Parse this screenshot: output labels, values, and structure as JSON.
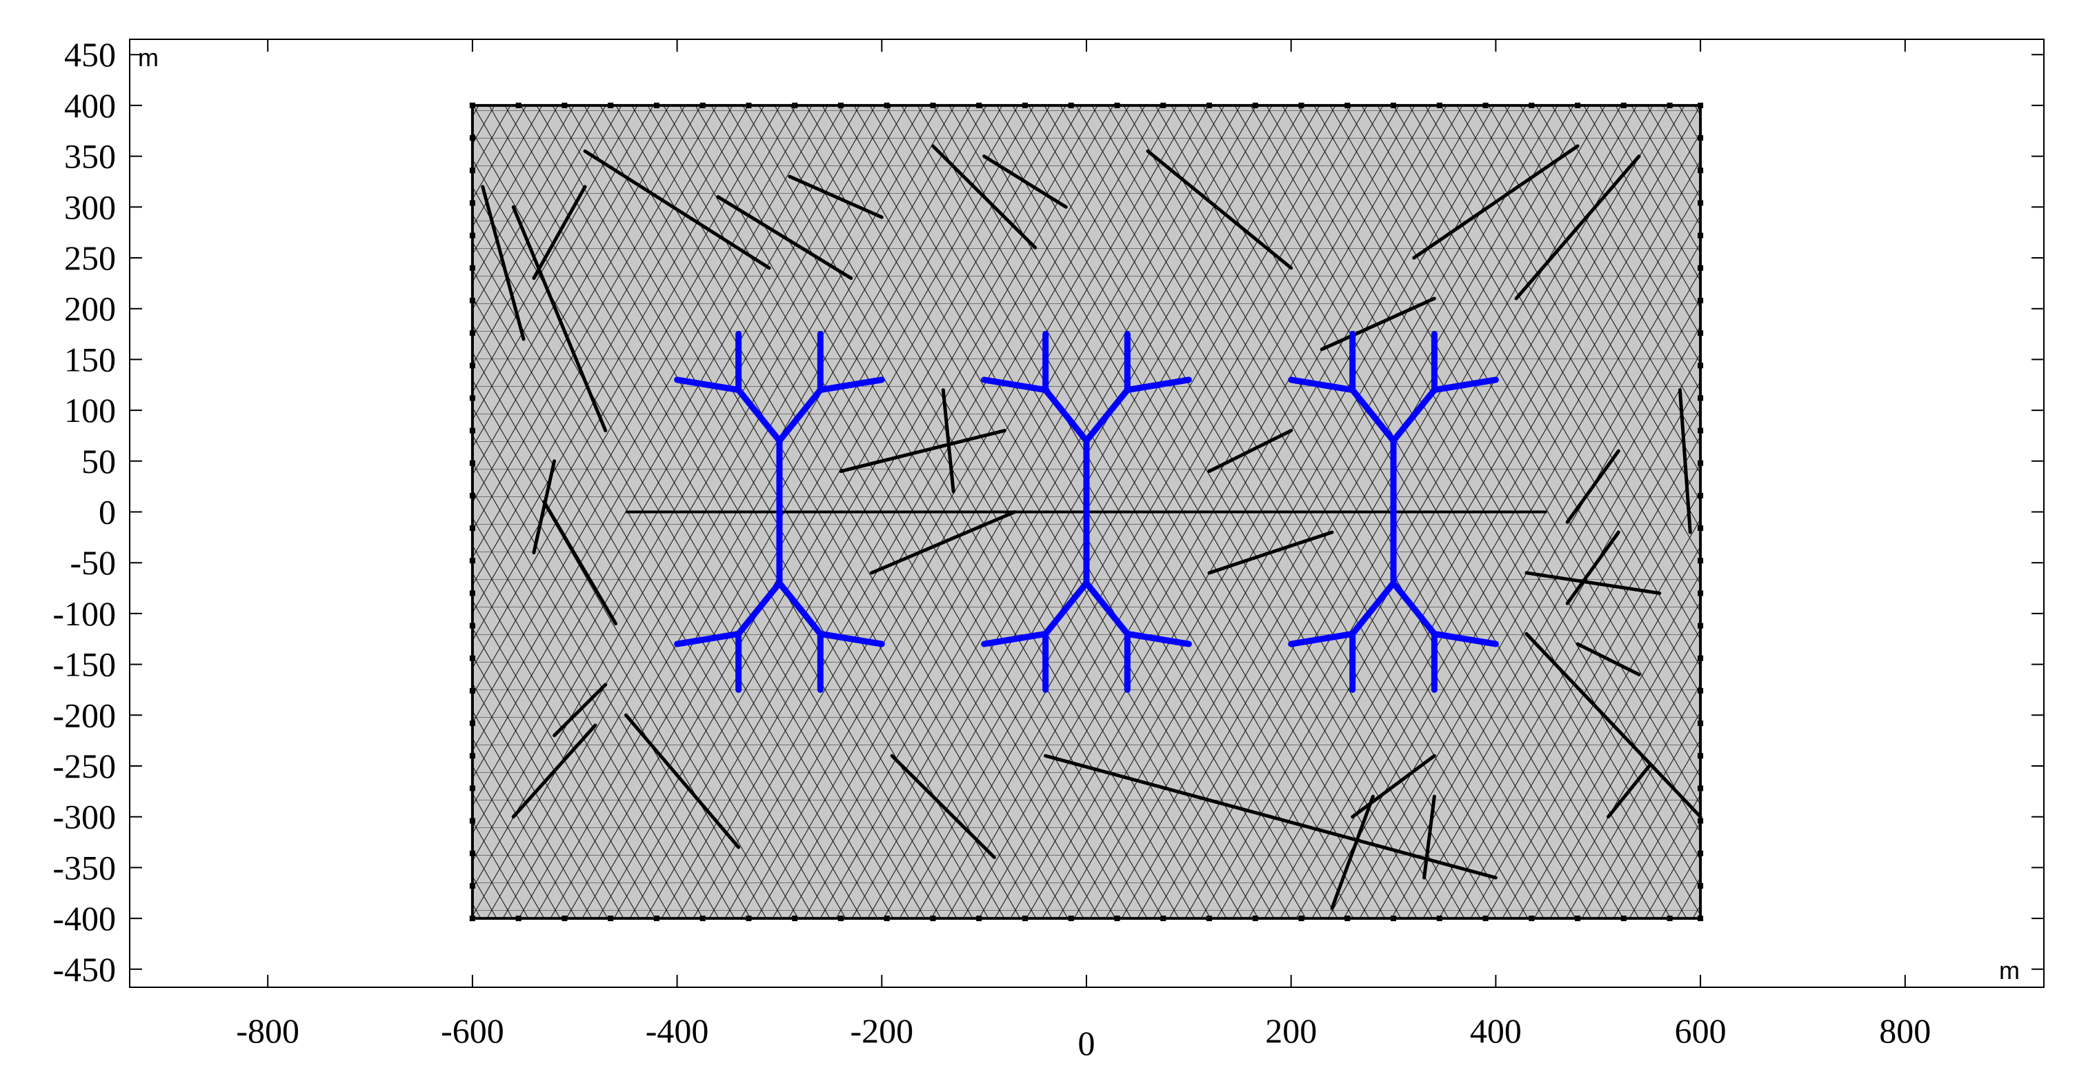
{
  "figure": {
    "x_unit": "m",
    "y_unit": "m"
  },
  "axes": {
    "x_ticks": [
      -800,
      -600,
      -400,
      -200,
      0,
      200,
      400,
      600,
      800
    ],
    "y_ticks": [
      450,
      400,
      350,
      300,
      250,
      200,
      150,
      100,
      50,
      0,
      -50,
      -100,
      -150,
      -200,
      -250,
      -300,
      -350,
      -400,
      -450
    ],
    "xlim": [
      -945,
      930
    ],
    "ylim": [
      -465,
      465
    ]
  },
  "domain_box": {
    "x": [
      -600,
      600
    ],
    "y": [
      -400,
      400
    ],
    "fill": "#c8c8c8",
    "edge": "#000000"
  },
  "horizontal_line": {
    "x": [
      -450,
      450
    ],
    "y": 0
  },
  "fracture_colors": {
    "natural": "#000000",
    "hydraulic": "#0000ff"
  },
  "natural_fractures": [
    [
      [
        -490,
        355
      ],
      [
        -310,
        240
      ]
    ],
    [
      [
        -360,
        310
      ],
      [
        -230,
        230
      ]
    ],
    [
      [
        -150,
        360
      ],
      [
        -50,
        260
      ]
    ],
    [
      [
        60,
        355
      ],
      [
        200,
        240
      ]
    ],
    [
      [
        -20,
        300
      ],
      [
        -100,
        350
      ]
    ],
    [
      [
        -560,
        300
      ],
      [
        -470,
        80
      ]
    ],
    [
      [
        -590,
        320
      ],
      [
        -550,
        170
      ]
    ],
    [
      [
        -490,
        320
      ],
      [
        -540,
        230
      ]
    ],
    [
      [
        -530,
        10
      ],
      [
        -460,
        -110
      ]
    ],
    [
      [
        -520,
        50
      ],
      [
        -540,
        -40
      ]
    ],
    [
      [
        -240,
        40
      ],
      [
        -80,
        80
      ]
    ],
    [
      [
        -210,
        -60
      ],
      [
        -70,
        0
      ]
    ],
    [
      [
        -140,
        120
      ],
      [
        -130,
        20
      ]
    ],
    [
      [
        120,
        40
      ],
      [
        200,
        80
      ]
    ],
    [
      [
        120,
        -60
      ],
      [
        240,
        -20
      ]
    ],
    [
      [
        320,
        250
      ],
      [
        480,
        360
      ]
    ],
    [
      [
        420,
        210
      ],
      [
        540,
        350
      ]
    ],
    [
      [
        470,
        -10
      ],
      [
        520,
        60
      ]
    ],
    [
      [
        430,
        -60
      ],
      [
        560,
        -80
      ]
    ],
    [
      [
        520,
        -20
      ],
      [
        470,
        -90
      ]
    ],
    [
      [
        590,
        -20
      ],
      [
        580,
        120
      ]
    ],
    [
      [
        480,
        -130
      ],
      [
        540,
        -160
      ]
    ],
    [
      [
        430,
        -120
      ],
      [
        600,
        -300
      ]
    ],
    [
      [
        -40,
        -240
      ],
      [
        400,
        -360
      ]
    ],
    [
      [
        -190,
        -240
      ],
      [
        -90,
        -340
      ]
    ],
    [
      [
        -520,
        -220
      ],
      [
        -470,
        -170
      ]
    ],
    [
      [
        -560,
        -300
      ],
      [
        -480,
        -210
      ]
    ],
    [
      [
        -450,
        -200
      ],
      [
        -340,
        -330
      ]
    ],
    [
      [
        260,
        -300
      ],
      [
        340,
        -240
      ]
    ],
    [
      [
        240,
        -390
      ],
      [
        280,
        -280
      ]
    ],
    [
      [
        330,
        -360
      ],
      [
        340,
        -280
      ]
    ],
    [
      [
        510,
        -300
      ],
      [
        550,
        -250
      ]
    ],
    [
      [
        -290,
        330
      ],
      [
        -200,
        290
      ]
    ],
    [
      [
        230,
        160
      ],
      [
        340,
        210
      ]
    ]
  ],
  "hydraulic_fractures": [
    {
      "center_x": -300,
      "segments": [
        [
          [
            -300,
            0
          ],
          [
            -300,
            70
          ]
        ],
        [
          [
            -300,
            70
          ],
          [
            -340,
            120
          ]
        ],
        [
          [
            -300,
            70
          ],
          [
            -260,
            120
          ]
        ],
        [
          [
            -340,
            120
          ],
          [
            -340,
            175
          ]
        ],
        [
          [
            -340,
            120
          ],
          [
            -400,
            130
          ]
        ],
        [
          [
            -260,
            120
          ],
          [
            -260,
            175
          ]
        ],
        [
          [
            -260,
            120
          ],
          [
            -200,
            130
          ]
        ],
        [
          [
            -300,
            0
          ],
          [
            -300,
            -70
          ]
        ],
        [
          [
            -300,
            -70
          ],
          [
            -340,
            -120
          ]
        ],
        [
          [
            -300,
            -70
          ],
          [
            -260,
            -120
          ]
        ],
        [
          [
            -340,
            -120
          ],
          [
            -340,
            -175
          ]
        ],
        [
          [
            -340,
            -120
          ],
          [
            -400,
            -130
          ]
        ],
        [
          [
            -260,
            -120
          ],
          [
            -260,
            -175
          ]
        ],
        [
          [
            -260,
            -120
          ],
          [
            -200,
            -130
          ]
        ]
      ]
    },
    {
      "center_x": 0,
      "segments": [
        [
          [
            0,
            0
          ],
          [
            0,
            70
          ]
        ],
        [
          [
            0,
            70
          ],
          [
            -40,
            120
          ]
        ],
        [
          [
            0,
            70
          ],
          [
            40,
            120
          ]
        ],
        [
          [
            -40,
            120
          ],
          [
            -40,
            175
          ]
        ],
        [
          [
            -40,
            120
          ],
          [
            -100,
            130
          ]
        ],
        [
          [
            40,
            120
          ],
          [
            40,
            175
          ]
        ],
        [
          [
            40,
            120
          ],
          [
            100,
            130
          ]
        ],
        [
          [
            0,
            0
          ],
          [
            0,
            -70
          ]
        ],
        [
          [
            0,
            -70
          ],
          [
            -40,
            -120
          ]
        ],
        [
          [
            0,
            -70
          ],
          [
            40,
            -120
          ]
        ],
        [
          [
            -40,
            -120
          ],
          [
            -40,
            -175
          ]
        ],
        [
          [
            -40,
            -120
          ],
          [
            -100,
            -130
          ]
        ],
        [
          [
            40,
            -120
          ],
          [
            40,
            -175
          ]
        ],
        [
          [
            40,
            -120
          ],
          [
            100,
            -130
          ]
        ]
      ]
    },
    {
      "center_x": 300,
      "segments": [
        [
          [
            300,
            0
          ],
          [
            300,
            70
          ]
        ],
        [
          [
            300,
            70
          ],
          [
            260,
            120
          ]
        ],
        [
          [
            300,
            70
          ],
          [
            340,
            120
          ]
        ],
        [
          [
            260,
            120
          ],
          [
            260,
            175
          ]
        ],
        [
          [
            260,
            120
          ],
          [
            200,
            130
          ]
        ],
        [
          [
            340,
            120
          ],
          [
            340,
            175
          ]
        ],
        [
          [
            340,
            120
          ],
          [
            400,
            130
          ]
        ],
        [
          [
            300,
            0
          ],
          [
            300,
            -70
          ]
        ],
        [
          [
            300,
            -70
          ],
          [
            260,
            -120
          ]
        ],
        [
          [
            300,
            -70
          ],
          [
            340,
            -120
          ]
        ],
        [
          [
            260,
            -120
          ],
          [
            260,
            -175
          ]
        ],
        [
          [
            260,
            -120
          ],
          [
            200,
            -130
          ]
        ],
        [
          [
            340,
            -120
          ],
          [
            340,
            -175
          ]
        ],
        [
          [
            340,
            -120
          ],
          [
            400,
            -130
          ]
        ]
      ]
    }
  ]
}
